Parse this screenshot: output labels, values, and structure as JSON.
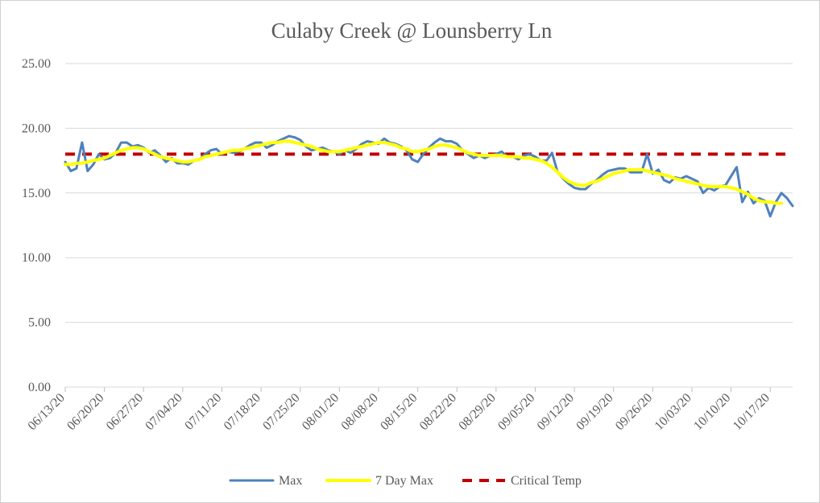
{
  "chart_data": {
    "type": "line",
    "title": "Culaby Creek @ Lounsberry Ln",
    "xlabel": "",
    "ylabel": "",
    "ylim": [
      0,
      25
    ],
    "yticks": [
      "0.00",
      "5.00",
      "10.00",
      "15.00",
      "20.00",
      "25.00"
    ],
    "grid": true,
    "legend_position": "bottom",
    "x_start": "06/13/20",
    "x_end": "10/20/20",
    "xtick_labels": [
      "06/13/20",
      "06/20/20",
      "06/27/20",
      "07/04/20",
      "07/11/20",
      "07/18/20",
      "07/25/20",
      "08/01/20",
      "08/08/20",
      "08/15/20",
      "08/22/20",
      "08/29/20",
      "09/05/20",
      "09/12/20",
      "09/19/20",
      "09/26/20",
      "10/03/20",
      "10/10/20",
      "10/17/20"
    ],
    "series": [
      {
        "name": "Max",
        "color": "#4f81bd",
        "style": "solid",
        "points": [
          [
            "06/13/20",
            17.4
          ],
          [
            "06/14/20",
            16.7
          ],
          [
            "06/15/20",
            16.9
          ],
          [
            "06/16/20",
            18.9
          ],
          [
            "06/17/20",
            16.7
          ],
          [
            "06/18/20",
            17.2
          ],
          [
            "06/19/20",
            18.0
          ],
          [
            "06/20/20",
            17.6
          ],
          [
            "06/21/20",
            17.7
          ],
          [
            "06/22/20",
            18.1
          ],
          [
            "06/23/20",
            18.9
          ],
          [
            "06/24/20",
            18.9
          ],
          [
            "06/25/20",
            18.6
          ],
          [
            "06/26/20",
            18.7
          ],
          [
            "06/27/20",
            18.5
          ],
          [
            "06/28/20",
            18.1
          ],
          [
            "06/29/20",
            18.3
          ],
          [
            "06/30/20",
            17.9
          ],
          [
            "07/01/20",
            17.4
          ],
          [
            "07/02/20",
            17.7
          ],
          [
            "07/03/20",
            17.3
          ],
          [
            "07/04/20",
            17.3
          ],
          [
            "07/05/20",
            17.2
          ],
          [
            "07/06/20",
            17.5
          ],
          [
            "07/07/20",
            17.6
          ],
          [
            "07/08/20",
            18.0
          ],
          [
            "07/09/20",
            18.3
          ],
          [
            "07/10/20",
            18.4
          ],
          [
            "07/11/20",
            18.0
          ],
          [
            "07/12/20",
            18.2
          ],
          [
            "07/13/20",
            18.1
          ],
          [
            "07/14/20",
            18.2
          ],
          [
            "07/15/20",
            18.4
          ],
          [
            "07/16/20",
            18.7
          ],
          [
            "07/17/20",
            18.9
          ],
          [
            "07/18/20",
            18.9
          ],
          [
            "07/19/20",
            18.5
          ],
          [
            "07/20/20",
            18.7
          ],
          [
            "07/21/20",
            19.0
          ],
          [
            "07/22/20",
            19.2
          ],
          [
            "07/23/20",
            19.4
          ],
          [
            "07/24/20",
            19.3
          ],
          [
            "07/25/20",
            19.1
          ],
          [
            "07/26/20",
            18.6
          ],
          [
            "07/27/20",
            18.3
          ],
          [
            "07/28/20",
            18.4
          ],
          [
            "07/29/20",
            18.5
          ],
          [
            "07/30/20",
            18.3
          ],
          [
            "07/31/20",
            18.2
          ],
          [
            "08/01/20",
            18.0
          ],
          [
            "08/02/20",
            18.3
          ],
          [
            "08/03/20",
            18.1
          ],
          [
            "08/04/20",
            18.4
          ],
          [
            "08/05/20",
            18.8
          ],
          [
            "08/06/20",
            19.0
          ],
          [
            "08/07/20",
            18.9
          ],
          [
            "08/08/20",
            18.8
          ],
          [
            "08/09/20",
            19.2
          ],
          [
            "08/10/20",
            18.9
          ],
          [
            "08/11/20",
            18.8
          ],
          [
            "08/12/20",
            18.6
          ],
          [
            "08/13/20",
            18.3
          ],
          [
            "08/14/20",
            17.6
          ],
          [
            "08/15/20",
            17.4
          ],
          [
            "08/16/20",
            18.0
          ],
          [
            "08/17/20",
            18.5
          ],
          [
            "08/18/20",
            18.9
          ],
          [
            "08/19/20",
            19.2
          ],
          [
            "08/20/20",
            19.0
          ],
          [
            "08/21/20",
            19.0
          ],
          [
            "08/22/20",
            18.8
          ],
          [
            "08/23/20",
            18.3
          ],
          [
            "08/24/20",
            18.0
          ],
          [
            "08/25/20",
            17.7
          ],
          [
            "08/26/20",
            17.9
          ],
          [
            "08/27/20",
            17.7
          ],
          [
            "08/28/20",
            17.9
          ],
          [
            "08/29/20",
            18.0
          ],
          [
            "08/30/20",
            18.2
          ],
          [
            "08/31/20",
            17.8
          ],
          [
            "09/01/20",
            17.8
          ],
          [
            "09/02/20",
            17.6
          ],
          [
            "09/03/20",
            17.9
          ],
          [
            "09/04/20",
            18.0
          ],
          [
            "09/05/20",
            17.8
          ],
          [
            "09/06/20",
            17.5
          ],
          [
            "09/07/20",
            17.5
          ],
          [
            "09/08/20",
            18.1
          ],
          [
            "09/09/20",
            16.6
          ],
          [
            "09/10/20",
            16.1
          ],
          [
            "09/11/20",
            15.7
          ],
          [
            "09/12/20",
            15.4
          ],
          [
            "09/13/20",
            15.3
          ],
          [
            "09/14/20",
            15.3
          ],
          [
            "09/15/20",
            15.7
          ],
          [
            "09/16/20",
            16.0
          ],
          [
            "09/17/20",
            16.4
          ],
          [
            "09/18/20",
            16.7
          ],
          [
            "09/19/20",
            16.8
          ],
          [
            "09/20/20",
            16.9
          ],
          [
            "09/21/20",
            16.9
          ],
          [
            "09/22/20",
            16.6
          ],
          [
            "09/23/20",
            16.6
          ],
          [
            "09/24/20",
            16.6
          ],
          [
            "09/25/20",
            18.0
          ],
          [
            "09/26/20",
            16.5
          ],
          [
            "09/27/20",
            16.8
          ],
          [
            "09/28/20",
            16.0
          ],
          [
            "09/29/20",
            15.8
          ],
          [
            "09/30/20",
            16.2
          ],
          [
            "10/01/20",
            16.1
          ],
          [
            "10/02/20",
            16.3
          ],
          [
            "10/03/20",
            16.1
          ],
          [
            "10/04/20",
            15.9
          ],
          [
            "10/05/20",
            15.0
          ],
          [
            "10/06/20",
            15.4
          ],
          [
            "10/07/20",
            15.2
          ],
          [
            "10/08/20",
            15.5
          ],
          [
            "10/09/20",
            15.6
          ],
          [
            "10/10/20",
            16.3
          ],
          [
            "10/11/20",
            17.0
          ],
          [
            "10/12/20",
            14.3
          ],
          [
            "10/13/20",
            15.1
          ],
          [
            "10/14/20",
            14.2
          ],
          [
            "10/15/20",
            14.6
          ],
          [
            "10/16/20",
            14.4
          ],
          [
            "10/17/20",
            13.2
          ],
          [
            "10/18/20",
            14.3
          ],
          [
            "10/19/20",
            15.0
          ],
          [
            "10/20/20",
            14.6
          ],
          [
            "10/21/20",
            14.0
          ]
        ]
      },
      {
        "name": "7 Day Max",
        "color": "#ffff00",
        "style": "solid",
        "points": [
          [
            "06/13/20",
            17.2
          ],
          [
            "06/14/20",
            17.2
          ],
          [
            "06/15/20",
            17.3
          ],
          [
            "06/16/20",
            17.3
          ],
          [
            "06/17/20",
            17.4
          ],
          [
            "06/18/20",
            17.5
          ],
          [
            "06/19/20",
            17.6
          ],
          [
            "06/20/20",
            17.7
          ],
          [
            "06/21/20",
            17.9
          ],
          [
            "06/22/20",
            18.1
          ],
          [
            "06/23/20",
            18.3
          ],
          [
            "06/24/20",
            18.4
          ],
          [
            "06/25/20",
            18.5
          ],
          [
            "06/26/20",
            18.5
          ],
          [
            "06/27/20",
            18.4
          ],
          [
            "06/28/20",
            18.2
          ],
          [
            "06/29/20",
            18.0
          ],
          [
            "06/30/20",
            17.8
          ],
          [
            "07/01/20",
            17.7
          ],
          [
            "07/02/20",
            17.6
          ],
          [
            "07/03/20",
            17.5
          ],
          [
            "07/04/20",
            17.4
          ],
          [
            "07/05/20",
            17.4
          ],
          [
            "07/06/20",
            17.5
          ],
          [
            "07/07/20",
            17.6
          ],
          [
            "07/08/20",
            17.8
          ],
          [
            "07/09/20",
            17.9
          ],
          [
            "07/10/20",
            18.0
          ],
          [
            "07/11/20",
            18.1
          ],
          [
            "07/12/20",
            18.2
          ],
          [
            "07/13/20",
            18.3
          ],
          [
            "07/14/20",
            18.3
          ],
          [
            "07/15/20",
            18.4
          ],
          [
            "07/16/20",
            18.5
          ],
          [
            "07/17/20",
            18.6
          ],
          [
            "07/18/20",
            18.7
          ],
          [
            "07/19/20",
            18.8
          ],
          [
            "07/20/20",
            18.9
          ],
          [
            "07/21/20",
            18.9
          ],
          [
            "07/22/20",
            19.0
          ],
          [
            "07/23/20",
            19.0
          ],
          [
            "07/24/20",
            18.9
          ],
          [
            "07/25/20",
            18.8
          ],
          [
            "07/26/20",
            18.7
          ],
          [
            "07/27/20",
            18.6
          ],
          [
            "07/28/20",
            18.4
          ],
          [
            "07/29/20",
            18.3
          ],
          [
            "07/30/20",
            18.2
          ],
          [
            "07/31/20",
            18.2
          ],
          [
            "08/01/20",
            18.2
          ],
          [
            "08/02/20",
            18.3
          ],
          [
            "08/03/20",
            18.4
          ],
          [
            "08/04/20",
            18.5
          ],
          [
            "08/05/20",
            18.6
          ],
          [
            "08/06/20",
            18.7
          ],
          [
            "08/07/20",
            18.8
          ],
          [
            "08/08/20",
            18.9
          ],
          [
            "08/09/20",
            18.9
          ],
          [
            "08/10/20",
            18.8
          ],
          [
            "08/11/20",
            18.7
          ],
          [
            "08/12/20",
            18.5
          ],
          [
            "08/13/20",
            18.4
          ],
          [
            "08/14/20",
            18.2
          ],
          [
            "08/15/20",
            18.2
          ],
          [
            "08/16/20",
            18.3
          ],
          [
            "08/17/20",
            18.4
          ],
          [
            "08/18/20",
            18.6
          ],
          [
            "08/19/20",
            18.7
          ],
          [
            "08/20/20",
            18.7
          ],
          [
            "08/21/20",
            18.6
          ],
          [
            "08/22/20",
            18.5
          ],
          [
            "08/23/20",
            18.3
          ],
          [
            "08/24/20",
            18.1
          ],
          [
            "08/25/20",
            18.0
          ],
          [
            "08/26/20",
            17.9
          ],
          [
            "08/27/20",
            17.9
          ],
          [
            "08/28/20",
            17.9
          ],
          [
            "08/29/20",
            17.9
          ],
          [
            "08/30/20",
            17.9
          ],
          [
            "08/31/20",
            17.8
          ],
          [
            "09/01/20",
            17.8
          ],
          [
            "09/02/20",
            17.8
          ],
          [
            "09/03/20",
            17.7
          ],
          [
            "09/04/20",
            17.7
          ],
          [
            "09/05/20",
            17.6
          ],
          [
            "09/06/20",
            17.5
          ],
          [
            "09/07/20",
            17.3
          ],
          [
            "09/08/20",
            17.0
          ],
          [
            "09/09/20",
            16.6
          ],
          [
            "09/10/20",
            16.2
          ],
          [
            "09/11/20",
            15.9
          ],
          [
            "09/12/20",
            15.7
          ],
          [
            "09/13/20",
            15.6
          ],
          [
            "09/14/20",
            15.6
          ],
          [
            "09/15/20",
            15.8
          ],
          [
            "09/16/20",
            15.9
          ],
          [
            "09/17/20",
            16.1
          ],
          [
            "09/18/20",
            16.3
          ],
          [
            "09/19/20",
            16.5
          ],
          [
            "09/20/20",
            16.6
          ],
          [
            "09/21/20",
            16.7
          ],
          [
            "09/22/20",
            16.8
          ],
          [
            "09/23/20",
            16.8
          ],
          [
            "09/24/20",
            16.8
          ],
          [
            "09/25/20",
            16.7
          ],
          [
            "09/26/20",
            16.6
          ],
          [
            "09/27/20",
            16.5
          ],
          [
            "09/28/20",
            16.4
          ],
          [
            "09/29/20",
            16.3
          ],
          [
            "09/30/20",
            16.1
          ],
          [
            "10/01/20",
            16.0
          ],
          [
            "10/02/20",
            15.9
          ],
          [
            "10/03/20",
            15.8
          ],
          [
            "10/04/20",
            15.7
          ],
          [
            "10/05/20",
            15.6
          ],
          [
            "10/06/20",
            15.5
          ],
          [
            "10/07/20",
            15.5
          ],
          [
            "10/08/20",
            15.5
          ],
          [
            "10/09/20",
            15.5
          ],
          [
            "10/10/20",
            15.4
          ],
          [
            "10/11/20",
            15.3
          ],
          [
            "10/12/20",
            15.1
          ],
          [
            "10/13/20",
            14.9
          ],
          [
            "10/14/20",
            14.6
          ],
          [
            "10/15/20",
            14.4
          ],
          [
            "10/16/20",
            14.3
          ],
          [
            "10/17/20",
            14.3
          ],
          [
            "10/18/20",
            14.2
          ],
          [
            "10/19/20",
            14.2
          ]
        ]
      },
      {
        "name": "Critical Temp",
        "color": "#c00000",
        "style": "dashed",
        "points": [
          [
            "06/13/20",
            18.0
          ],
          [
            "10/21/20",
            18.0
          ]
        ]
      }
    ]
  }
}
